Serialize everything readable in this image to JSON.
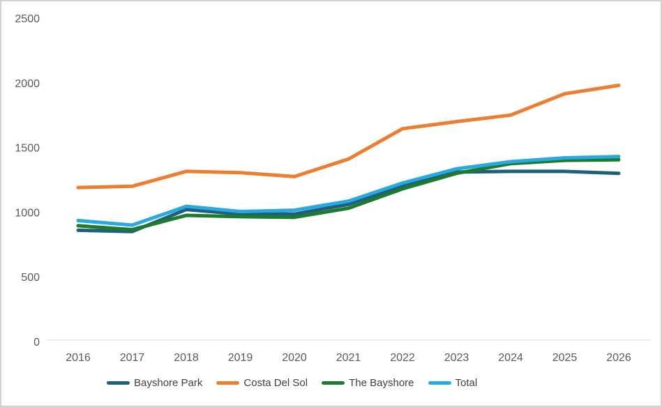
{
  "chart_data": {
    "type": "line",
    "title": "",
    "categories": [
      "2016",
      "2017",
      "2018",
      "2019",
      "2020",
      "2021",
      "2022",
      "2023",
      "2024",
      "2025",
      "2026"
    ],
    "series": [
      {
        "name": "Bayshore Park",
        "color": "#1f5f7c",
        "values": [
          860,
          850,
          1020,
          985,
          985,
          1060,
          1200,
          1310,
          1315,
          1315,
          1300
        ]
      },
      {
        "name": "Costa Del Sol",
        "color": "#ed7d31",
        "values": [
          1190,
          1200,
          1315,
          1305,
          1275,
          1410,
          1645,
          1700,
          1750,
          1915,
          1980
        ]
      },
      {
        "name": "The Bayshore",
        "color": "#1e7b2e",
        "values": [
          895,
          865,
          975,
          965,
          960,
          1030,
          1180,
          1300,
          1375,
          1400,
          1405
        ]
      },
      {
        "name": "Total",
        "color": "#29a9e1",
        "values": [
          935,
          900,
          1045,
          1005,
          1015,
          1085,
          1225,
          1335,
          1390,
          1420,
          1430
        ]
      }
    ],
    "xlabel": "",
    "ylabel": "",
    "ylim": [
      0,
      2500
    ],
    "y_ticks": [
      0,
      500,
      1000,
      1500,
      2000,
      2500
    ],
    "grid": false,
    "legend_position": "bottom",
    "axis_line_color": "#d9d9d9",
    "tick_label_color": "#595959",
    "legend_text_color": "#3f3f3f"
  }
}
